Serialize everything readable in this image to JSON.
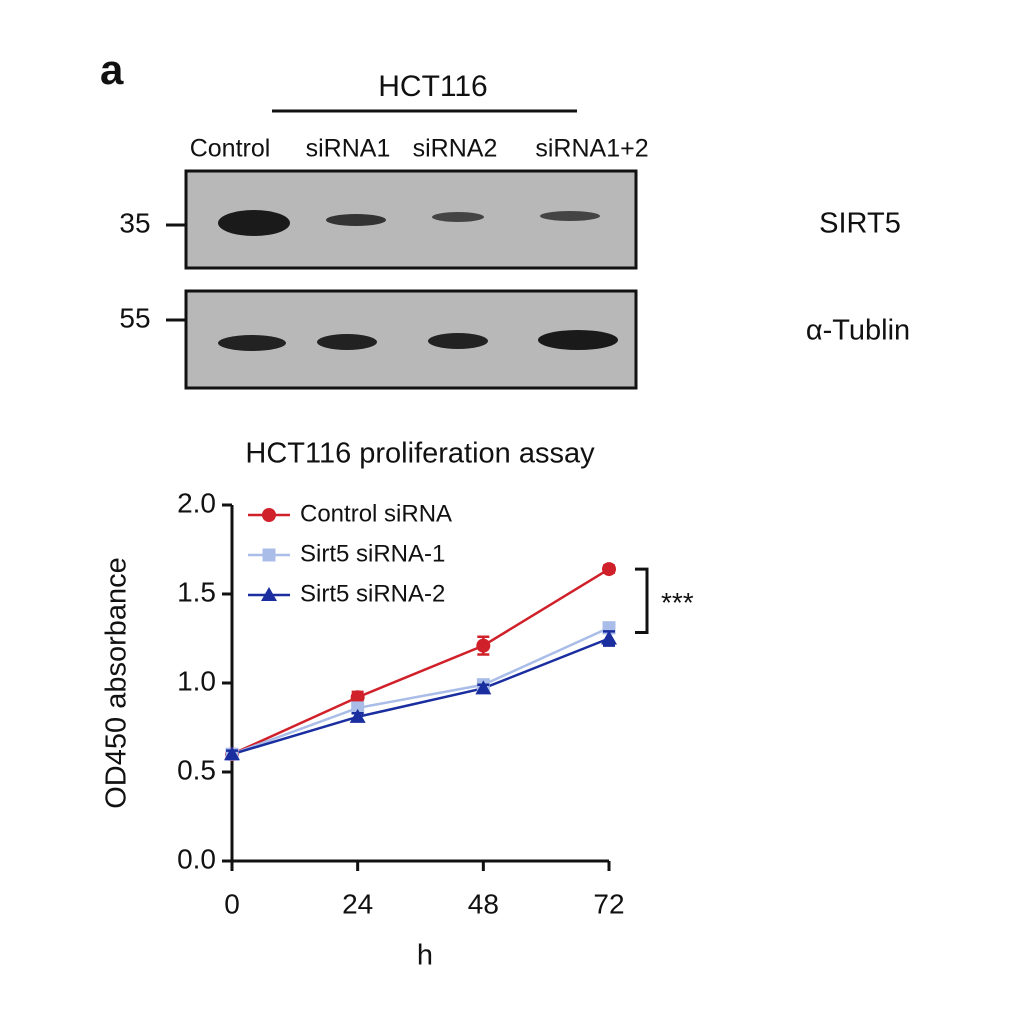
{
  "panel_label": "a",
  "blot": {
    "group_label": "HCT116",
    "lanes": [
      "Control",
      "siRNA1",
      "siRNA2",
      "siRNA1+2"
    ],
    "markers": [
      "35",
      "55"
    ],
    "proteins": [
      "SIRT5",
      "α-Tublin"
    ]
  },
  "chart_data": {
    "type": "line",
    "title": "HCT116 proliferation assay",
    "x_label": "h",
    "y_label": "OD450  absorbance",
    "x": [
      0,
      24,
      48,
      72
    ],
    "xlim": [
      0,
      72
    ],
    "xticks": [
      0,
      24,
      48,
      72
    ],
    "ylim": [
      0,
      2
    ],
    "yticks": [
      {
        "value": 0,
        "label": "0.0"
      },
      0.5,
      {
        "value": 1,
        "label": "1.0"
      },
      1.5,
      {
        "value": 2,
        "label": "2.0"
      }
    ],
    "series": [
      {
        "name": "Control siRNA",
        "color": "#d0202a",
        "marker": "circle",
        "values": [
          0.6,
          0.92,
          1.21,
          1.64
        ],
        "errors": [
          0.02,
          0.03,
          0.05,
          0.02
        ]
      },
      {
        "name": "Sirt5 siRNA-1",
        "color": "#a9bde8",
        "marker": "square",
        "values": [
          0.6,
          0.86,
          0.99,
          1.31
        ],
        "errors": [
          0.02,
          0.02,
          0.03,
          0.03
        ]
      },
      {
        "name": "Sirt5 siRNA-2",
        "color": "#1a2ea0",
        "marker": "triangle",
        "values": [
          0.6,
          0.81,
          0.97,
          1.25
        ],
        "errors": [
          0.02,
          0.02,
          0.02,
          0.04
        ]
      }
    ],
    "annotation": "***",
    "legend": "upper left"
  }
}
